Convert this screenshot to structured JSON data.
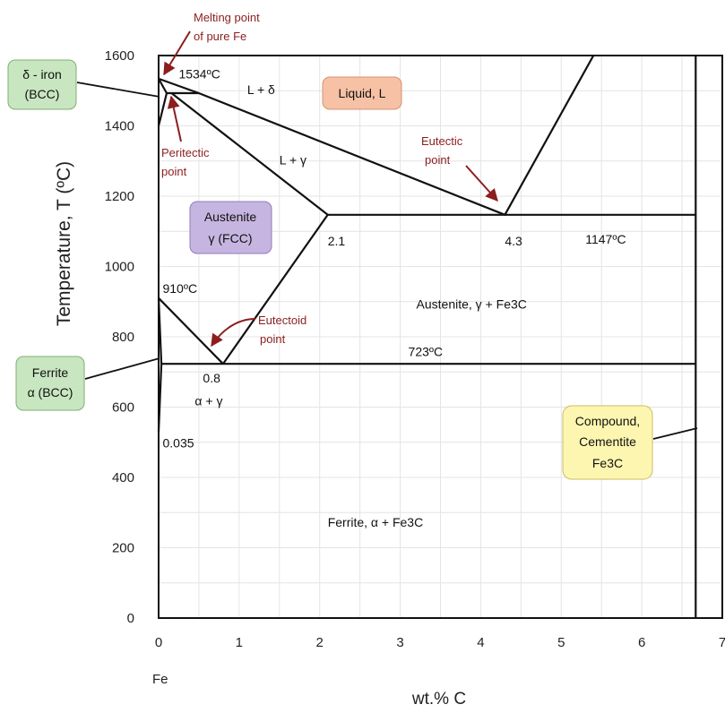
{
  "chart_data": {
    "type": "line",
    "title": "",
    "xlabel": "wt.% C",
    "ylabel": "Temperature, T  (ºC)",
    "x_origin_label": "Fe",
    "xlim": [
      0,
      7
    ],
    "ylim": [
      0,
      1600
    ],
    "x_ticks": [
      "0",
      "1",
      "2",
      "3",
      "4",
      "5",
      "6",
      "7"
    ],
    "y_ticks": [
      "0",
      "200",
      "400",
      "600",
      "800",
      "1000",
      "1200",
      "1400",
      "1600"
    ],
    "grid": true,
    "phase_boundaries": [
      {
        "name": "liquidus",
        "x": [
          0,
          0.5,
          4.3,
          5.4
        ],
        "y": [
          1534,
          1493,
          1147,
          1600
        ]
      },
      {
        "name": "delta-solidus",
        "x": [
          0,
          0.1
        ],
        "y": [
          1534,
          1493
        ]
      },
      {
        "name": "delta-gamma-boundary",
        "x": [
          0,
          0.1,
          0.16,
          0.5
        ],
        "y": [
          1400,
          1493,
          1493,
          1493
        ]
      },
      {
        "name": "gamma-solidus",
        "x": [
          0.16,
          2.1
        ],
        "y": [
          1493,
          1147
        ]
      },
      {
        "name": "eutectic-isotherm",
        "x": [
          2.1,
          6.67
        ],
        "y": [
          1147,
          1147
        ]
      },
      {
        "name": "acm-line",
        "x": [
          2.1,
          0.8
        ],
        "y": [
          1147,
          723
        ]
      },
      {
        "name": "a3-line",
        "x": [
          0,
          0.8
        ],
        "y": [
          910,
          723
        ]
      },
      {
        "name": "alpha-gamma-boundary",
        "x": [
          0,
          0.035
        ],
        "y": [
          910,
          723
        ]
      },
      {
        "name": "alpha-solvus",
        "x": [
          0.035,
          0
        ],
        "y": [
          723,
          530
        ]
      },
      {
        "name": "eutectoid-isotherm",
        "x": [
          0.035,
          6.67
        ],
        "y": [
          723,
          723
        ]
      },
      {
        "name": "cementite-line",
        "x": [
          6.67,
          6.67
        ],
        "y": [
          0,
          1600
        ]
      }
    ],
    "annotations": [
      {
        "text": "1534ºC",
        "x": 0.25,
        "y": 1535
      },
      {
        "text": "L + δ",
        "x": 1.1,
        "y": 1490
      },
      {
        "text": "L + γ",
        "x": 1.5,
        "y": 1290
      },
      {
        "text": "2.1",
        "x": 2.1,
        "y": 1060
      },
      {
        "text": "4.3",
        "x": 4.3,
        "y": 1060
      },
      {
        "text": "1147ºC",
        "x": 5.3,
        "y": 1065
      },
      {
        "text": "910ºC",
        "x": 0.05,
        "y": 925
      },
      {
        "text": "Austenite, γ + Fe3C",
        "x": 3.2,
        "y": 880
      },
      {
        "text": "723ºC",
        "x": 3.1,
        "y": 745
      },
      {
        "text": "0.8",
        "x": 0.55,
        "y": 670
      },
      {
        "text": "α + γ",
        "x": 0.45,
        "y": 605
      },
      {
        "text": "0.035",
        "x": 0.05,
        "y": 485
      },
      {
        "text": "Ferrite, α + Fe3C",
        "x": 2.1,
        "y": 260
      }
    ],
    "callouts": [
      {
        "text": [
          "Melting point",
          "of pure Fe"
        ]
      },
      {
        "text": [
          "Peritectic",
          "point"
        ]
      },
      {
        "text": [
          "Eutectic",
          "point"
        ]
      },
      {
        "text": [
          "Eutectoid",
          "point"
        ]
      }
    ],
    "label_boxes": [
      {
        "name": "delta-iron",
        "lines": [
          "δ - iron",
          "(BCC)"
        ],
        "color": "#c8e6c0"
      },
      {
        "name": "liquid",
        "lines": [
          "Liquid, L"
        ],
        "color": "#f6c1a4"
      },
      {
        "name": "austenite",
        "lines": [
          "Austenite",
          "γ  (FCC)"
        ],
        "color": "#c6b5e0"
      },
      {
        "name": "ferrite",
        "lines": [
          "Ferrite",
          "α (BCC)"
        ],
        "color": "#c8e6c0"
      },
      {
        "name": "cementite",
        "lines": [
          "Compound,",
          "Cementite",
          "Fe3C"
        ],
        "color": "#fdf6b0"
      }
    ],
    "colors": {
      "lines": "#111111",
      "arrows": "#8b1e1e",
      "grid": "#e4e4e4"
    }
  }
}
